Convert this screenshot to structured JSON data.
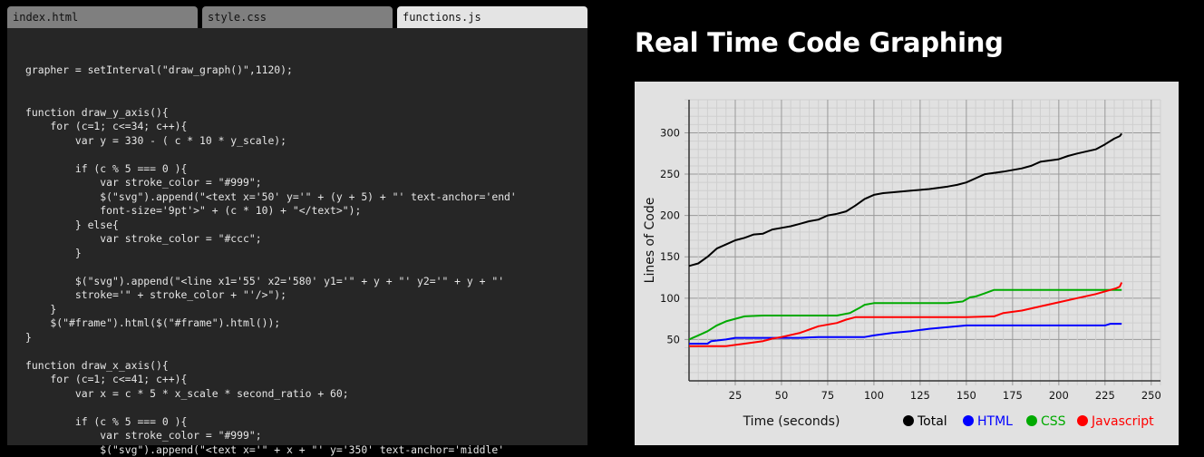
{
  "editor": {
    "tabs": [
      {
        "label": "index.html",
        "active": false
      },
      {
        "label": "style.css",
        "active": false
      },
      {
        "label": "functions.js",
        "active": true
      }
    ],
    "code": "grapher = setInterval(\"draw_graph()\",1120);\n\n\nfunction draw_y_axis(){\n    for (c=1; c<=34; c++){\n        var y = 330 - ( c * 10 * y_scale);\n\n        if (c % 5 === 0 ){\n            var stroke_color = \"#999\";\n            $(\"svg\").append(\"<text x='50' y='\" + (y + 5) + \"' text-anchor='end'\n            font-size='9pt'>\" + (c * 10) + \"</text>\");\n        } else{\n            var stroke_color = \"#ccc\";\n        }\n\n        $(\"svg\").append(\"<line x1='55' x2='580' y1='\" + y + \"' y2='\" + y + \"'\n        stroke='\" + stroke_color + \"'/>\");\n    }\n    $(\"#frame\").html($(\"#frame\").html());\n}\n\nfunction draw_x_axis(){\n    for (c=1; c<=41; c++){\n        var x = c * 5 * x_scale * second_ratio + 60;\n\n        if (c % 5 === 0 ){\n            var stroke_color = \"#999\";\n            $(\"svg\").append(\"<text x='\" + x + \"' y='350' text-anchor='middle'"
  },
  "page": {
    "title": "Real Time Code Graphing"
  },
  "chart_data": {
    "type": "line",
    "xlabel": "Time (seconds)",
    "ylabel": "Lines of Code",
    "xlim": [
      0,
      255
    ],
    "ylim": [
      0,
      340
    ],
    "x_ticks": [
      "25",
      "50",
      "75",
      "100",
      "125",
      "150",
      "175",
      "200",
      "225",
      "250"
    ],
    "y_ticks": [
      "50",
      "100",
      "150",
      "200",
      "250",
      "300"
    ],
    "grid": true,
    "legend_position": "bottom-right",
    "series": [
      {
        "name": "Total",
        "color": "#000000",
        "label_color": "#000000",
        "points": [
          [
            0,
            139
          ],
          [
            5,
            142
          ],
          [
            10,
            150
          ],
          [
            15,
            160
          ],
          [
            20,
            165
          ],
          [
            25,
            170
          ],
          [
            30,
            173
          ],
          [
            35,
            177
          ],
          [
            40,
            178
          ],
          [
            45,
            183
          ],
          [
            50,
            185
          ],
          [
            55,
            187
          ],
          [
            60,
            190
          ],
          [
            65,
            193
          ],
          [
            70,
            195
          ],
          [
            75,
            200
          ],
          [
            80,
            202
          ],
          [
            85,
            205
          ],
          [
            90,
            212
          ],
          [
            95,
            220
          ],
          [
            100,
            225
          ],
          [
            105,
            227
          ],
          [
            110,
            228
          ],
          [
            120,
            230
          ],
          [
            130,
            232
          ],
          [
            140,
            235
          ],
          [
            145,
            237
          ],
          [
            150,
            240
          ],
          [
            155,
            245
          ],
          [
            160,
            250
          ],
          [
            170,
            253
          ],
          [
            180,
            257
          ],
          [
            185,
            260
          ],
          [
            190,
            265
          ],
          [
            200,
            268
          ],
          [
            205,
            272
          ],
          [
            210,
            275
          ],
          [
            220,
            280
          ],
          [
            225,
            286
          ],
          [
            230,
            293
          ],
          [
            233,
            296
          ],
          [
            234,
            299
          ]
        ]
      },
      {
        "name": "HTML",
        "color": "#0000ff",
        "label_color": "#0000ff",
        "points": [
          [
            0,
            45
          ],
          [
            10,
            45
          ],
          [
            12,
            48
          ],
          [
            20,
            50
          ],
          [
            25,
            52
          ],
          [
            60,
            52
          ],
          [
            70,
            53
          ],
          [
            95,
            53
          ],
          [
            100,
            55
          ],
          [
            110,
            58
          ],
          [
            120,
            60
          ],
          [
            130,
            63
          ],
          [
            140,
            65
          ],
          [
            150,
            67
          ],
          [
            160,
            67
          ],
          [
            200,
            67
          ],
          [
            225,
            67
          ],
          [
            228,
            69
          ],
          [
            234,
            69
          ]
        ]
      },
      {
        "name": "CSS",
        "color": "#00aa00",
        "label_color": "#00aa00",
        "points": [
          [
            0,
            50
          ],
          [
            5,
            55
          ],
          [
            10,
            60
          ],
          [
            15,
            67
          ],
          [
            20,
            72
          ],
          [
            25,
            75
          ],
          [
            30,
            78
          ],
          [
            40,
            79
          ],
          [
            80,
            79
          ],
          [
            87,
            82
          ],
          [
            92,
            88
          ],
          [
            95,
            92
          ],
          [
            100,
            94
          ],
          [
            115,
            94
          ],
          [
            140,
            94
          ],
          [
            148,
            96
          ],
          [
            152,
            101
          ],
          [
            155,
            102
          ],
          [
            160,
            106
          ],
          [
            165,
            110
          ],
          [
            200,
            110
          ],
          [
            230,
            110
          ],
          [
            234,
            110
          ]
        ]
      },
      {
        "name": "Javascript",
        "color": "#ff0000",
        "label_color": "#ff0000",
        "points": [
          [
            0,
            42
          ],
          [
            20,
            42
          ],
          [
            30,
            45
          ],
          [
            40,
            48
          ],
          [
            45,
            51
          ],
          [
            50,
            53
          ],
          [
            60,
            58
          ],
          [
            65,
            62
          ],
          [
            70,
            66
          ],
          [
            80,
            70
          ],
          [
            85,
            74
          ],
          [
            90,
            77
          ],
          [
            95,
            77
          ],
          [
            100,
            77
          ],
          [
            120,
            77
          ],
          [
            150,
            77
          ],
          [
            165,
            78
          ],
          [
            170,
            82
          ],
          [
            180,
            85
          ],
          [
            190,
            90
          ],
          [
            200,
            95
          ],
          [
            210,
            100
          ],
          [
            220,
            105
          ],
          [
            228,
            110
          ],
          [
            231,
            112
          ],
          [
            233,
            114
          ],
          [
            234,
            119
          ]
        ]
      }
    ]
  }
}
